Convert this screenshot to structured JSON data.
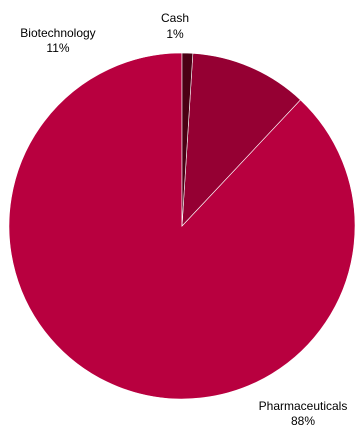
{
  "chart_data": {
    "type": "pie",
    "title": "",
    "start_angle_deg": 0,
    "direction": "clockwise",
    "series": [
      {
        "categories": [
          "Pharmaceuticals",
          "Biotechnology",
          "Cash"
        ],
        "values": [
          88,
          11,
          1
        ],
        "labels": [
          "88%",
          "11%",
          "1%"
        ],
        "colors": [
          "#b8003f",
          "#950033",
          "#4a0014"
        ]
      }
    ],
    "legend": "none",
    "data_labels": "outside"
  }
}
